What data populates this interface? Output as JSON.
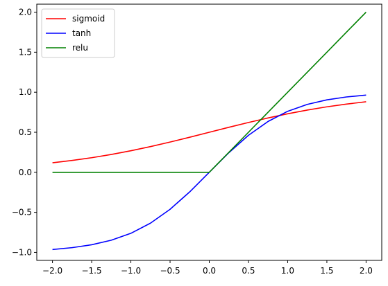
{
  "chart_data": {
    "type": "line",
    "title": "",
    "xlabel": "",
    "ylabel": "",
    "xlim": [
      -2.2,
      2.2
    ],
    "ylim": [
      -1.1,
      2.1
    ],
    "grid": false,
    "legend_position": "top-left",
    "x_ticks": [
      "−2.0",
      "−1.5",
      "−1.0",
      "−0.5",
      "0.0",
      "0.5",
      "1.0",
      "1.5",
      "2.0"
    ],
    "x_tick_values": [
      -2.0,
      -1.5,
      -1.0,
      -0.5,
      0.0,
      0.5,
      1.0,
      1.5,
      2.0
    ],
    "y_ticks": [
      "−1.0",
      "−0.5",
      "0.0",
      "0.5",
      "1.0",
      "1.5",
      "2.0"
    ],
    "y_tick_values": [
      -1.0,
      -0.5,
      0.0,
      0.5,
      1.0,
      1.5,
      2.0
    ],
    "x": [
      -2.0,
      -1.75,
      -1.5,
      -1.25,
      -1.0,
      -0.75,
      -0.5,
      -0.25,
      0.0,
      0.25,
      0.5,
      0.75,
      1.0,
      1.25,
      1.5,
      1.75,
      2.0
    ],
    "series": [
      {
        "name": "sigmoid",
        "color": "#ff0000",
        "values": [
          0.119,
          0.148,
          0.182,
          0.223,
          0.269,
          0.321,
          0.378,
          0.438,
          0.5,
          0.562,
          0.622,
          0.679,
          0.731,
          0.777,
          0.818,
          0.852,
          0.881
        ]
      },
      {
        "name": "tanh",
        "color": "#0000ff",
        "values": [
          -0.964,
          -0.941,
          -0.905,
          -0.848,
          -0.762,
          -0.635,
          -0.462,
          -0.245,
          0.0,
          0.245,
          0.462,
          0.635,
          0.762,
          0.848,
          0.905,
          0.941,
          0.964
        ]
      },
      {
        "name": "relu",
        "color": "#008000",
        "values": [
          0.0,
          0.0,
          0.0,
          0.0,
          0.0,
          0.0,
          0.0,
          0.0,
          0.0,
          0.25,
          0.5,
          0.75,
          1.0,
          1.25,
          1.5,
          1.75,
          2.0
        ]
      }
    ]
  }
}
